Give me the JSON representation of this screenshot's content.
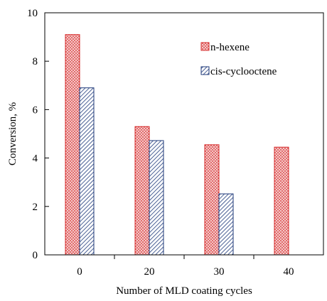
{
  "chart_data": {
    "type": "bar",
    "title": "",
    "xlabel": "Number of MLD coating cycles",
    "ylabel": "Conversion, %",
    "ylim": [
      0,
      10
    ],
    "yticks": [
      "0",
      "2",
      "4",
      "6",
      "8",
      "10"
    ],
    "categories": [
      "0",
      "20",
      "30",
      "40"
    ],
    "series": [
      {
        "name": "n-hexene",
        "values": [
          9.1,
          5.3,
          4.55,
          4.45
        ],
        "color": "#d62d2d",
        "fill": "#f4c7c7",
        "pattern": "red-dots"
      },
      {
        "name": "cis-cyclooctene",
        "values": [
          6.9,
          4.72,
          2.52,
          0
        ],
        "color": "#1f3a7a",
        "fill": "#e6ebf5",
        "pattern": "diagonal-hatch"
      }
    ],
    "legend_position": "top-right",
    "grid": false
  }
}
